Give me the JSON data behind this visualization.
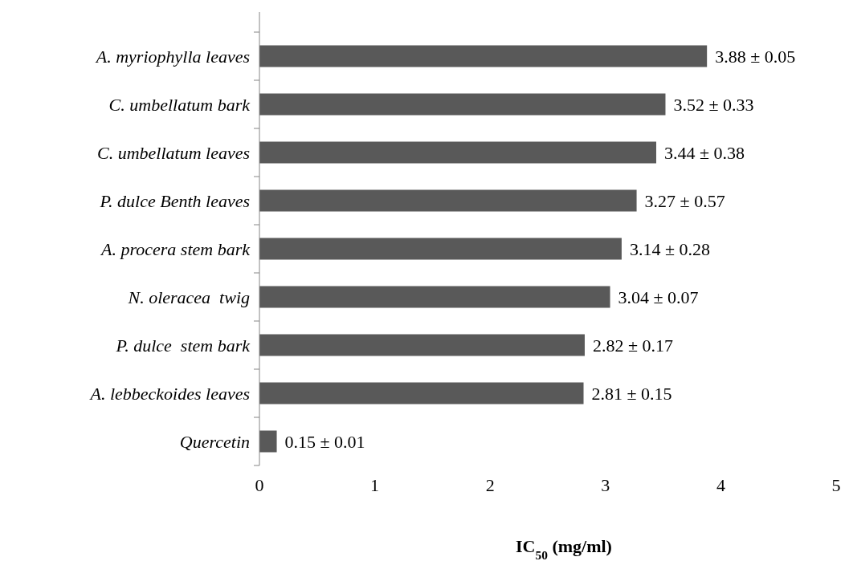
{
  "chart_data": {
    "type": "bar",
    "orientation": "horizontal",
    "xlabel": "IC$_{50}$ (mg/ml)",
    "categories": [
      "A. myriophylla leaves",
      "C. umbellatum bark",
      "C. umbellatum leaves",
      "P. dulce Benth leaves",
      "A. procera stem bark",
      "N. oleracea  twig",
      "P. dulce  stem bark",
      "A. lebbeckoides leaves",
      "Quercetin"
    ],
    "values": [
      3.88,
      3.52,
      3.44,
      3.27,
      3.14,
      3.04,
      2.82,
      2.81,
      0.15
    ],
    "value_labels": [
      "3.88 ± 0.05",
      "3.52 ± 0.33",
      "3.44 ± 0.38",
      "3.27 ± 0.57",
      "3.14 ± 0.28",
      "3.04 ± 0.07",
      "2.82 ± 0.17",
      "2.81 ± 0.15",
      "0.15 ± 0.01"
    ],
    "color": "#595959",
    "xlim": [
      0,
      5
    ],
    "xticks": [
      0,
      1,
      2,
      3,
      4,
      5
    ],
    "grid": false
  }
}
